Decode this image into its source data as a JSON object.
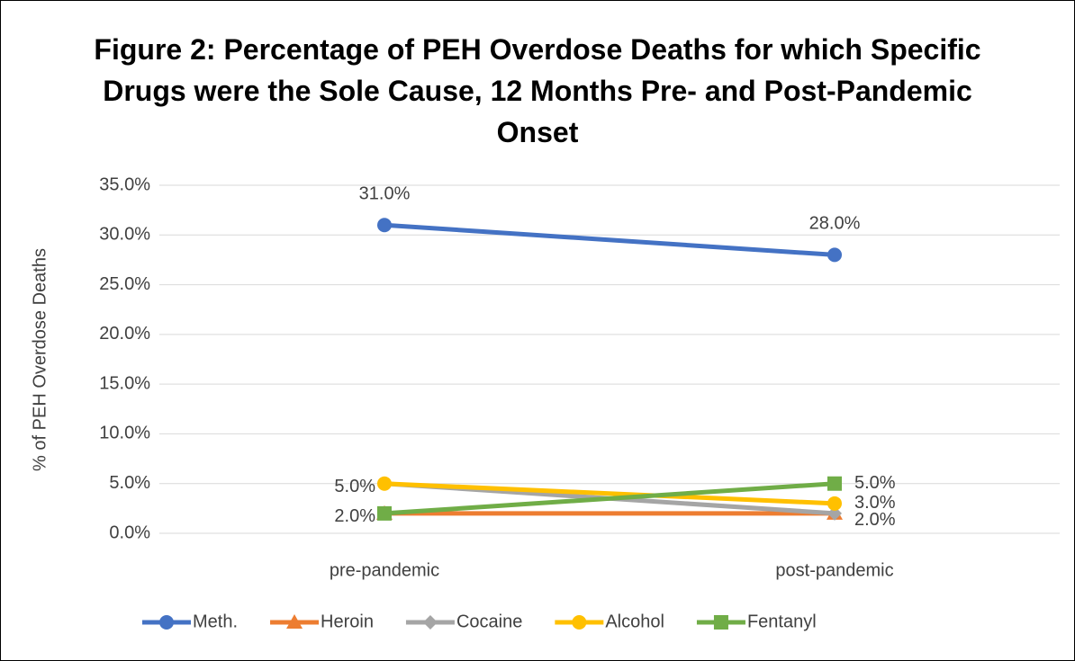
{
  "chart_data": {
    "type": "line",
    "title": "Figure 2: Percentage of PEH Overdose Deaths for which Specific Drugs were the Sole Cause, 12 Months Pre- and Post-Pandemic Onset",
    "y_label": "% of PEH Overdose Deaths",
    "categories": [
      "pre-pandemic",
      "post-pandemic"
    ],
    "series": [
      {
        "name": "Meth.",
        "color": "#4472c4",
        "values": [
          31,
          28
        ],
        "value_labels": [
          "31.0%",
          "28.0%"
        ]
      },
      {
        "name": "Heroin",
        "color": "#ed7d31",
        "values": [
          2,
          2
        ]
      },
      {
        "name": "Cocaine",
        "color": "#a5a5a5",
        "values": [
          5,
          2
        ],
        "value_labels": [
          null,
          "2.0%"
        ]
      },
      {
        "name": "Alcohol",
        "color": "#ffc000",
        "values": [
          5,
          3
        ],
        "value_labels": [
          "5.0%",
          "3.0%"
        ]
      },
      {
        "name": "Fentanyl",
        "color": "#70ad47",
        "values": [
          2,
          5
        ],
        "value_labels": [
          "2.0%",
          "5.0%"
        ]
      }
    ],
    "ylim": [
      0,
      35
    ],
    "yticks": [
      {
        "value": 0,
        "label": "0.0%"
      },
      {
        "value": 5,
        "label": "5.0%"
      },
      {
        "value": 10,
        "label": "10.0%"
      },
      {
        "value": 15,
        "label": "15.0%"
      },
      {
        "value": 20,
        "label": "20.0%"
      },
      {
        "value": 25,
        "label": "25.0%"
      },
      {
        "value": 30,
        "label": "30.0%"
      },
      {
        "value": 35,
        "label": "35.0%"
      }
    ],
    "grid": true,
    "legend": "bottom"
  }
}
